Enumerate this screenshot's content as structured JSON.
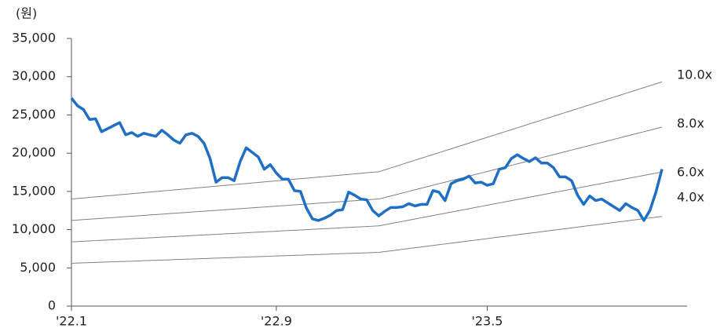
{
  "chart_data": {
    "type": "line",
    "y_label": "(원)",
    "ylim": [
      0,
      35000
    ],
    "yticks": [
      0,
      {
        "value": 5000,
        "label": "5,000"
      },
      {
        "value": 10000,
        "label": "10,000"
      },
      {
        "value": 15000,
        "label": "15,000"
      },
      {
        "value": 20000,
        "label": "20,000"
      },
      {
        "value": 25000,
        "label": "25,000"
      },
      {
        "value": 30000,
        "label": "30,000"
      },
      {
        "value": 35000,
        "label": "35,000"
      }
    ],
    "categories": [
      "'22.1",
      null,
      null,
      null,
      null,
      null,
      null,
      null,
      null,
      null,
      null,
      null,
      null,
      null,
      null,
      null,
      null,
      null,
      null,
      null,
      null,
      null,
      null,
      null,
      null,
      null,
      null,
      null,
      null,
      null,
      null,
      null,
      null,
      null,
      "'22.9",
      null,
      null,
      null,
      null,
      null,
      null,
      null,
      null,
      null,
      null,
      null,
      null,
      null,
      null,
      null,
      null,
      null,
      null,
      null,
      null,
      null,
      null,
      null,
      null,
      null,
      null,
      null,
      null,
      null,
      null,
      null,
      null,
      null,
      null,
      "'23.5",
      null,
      null,
      null,
      null,
      null,
      null,
      null,
      null,
      null,
      null,
      null,
      null,
      null,
      null,
      null,
      null,
      null,
      null,
      null,
      null,
      null,
      null,
      null,
      null,
      null,
      null,
      null,
      null,
      null
    ],
    "series": [
      {
        "color": "#1f6fc5",
        "values": [
          27200,
          26200,
          25700,
          24400,
          24500,
          22800,
          23200,
          23600,
          24000,
          22400,
          22700,
          22200,
          22600,
          22400,
          22200,
          23000,
          22400,
          21700,
          21300,
          22400,
          22600,
          22200,
          21300,
          19300,
          16200,
          16800,
          16800,
          16400,
          18900,
          20700,
          20100,
          19500,
          17900,
          18500,
          17400,
          16600,
          16600,
          15100,
          15000,
          12800,
          11400,
          11200,
          11500,
          11900,
          12500,
          12600,
          14900,
          14500,
          14000,
          13900,
          12500,
          11800,
          12400,
          12900,
          12900,
          13000,
          13400,
          13100,
          13300,
          13300,
          15100,
          14900,
          13800,
          16000,
          16400,
          16600,
          17000,
          16100,
          16200,
          15800,
          16000,
          17900,
          18100,
          19300,
          19800,
          19300,
          18900,
          19400,
          18700,
          18700,
          18100,
          16900,
          16900,
          16400,
          14500,
          13300,
          14400,
          13800,
          14000,
          13500,
          13000,
          12500,
          13400,
          12900,
          12500,
          11200,
          12500,
          14900,
          17900
        ]
      },
      {
        "name": "10.0x",
        "color": "#808080",
        "values": [
          14000,
          14070,
          14140,
          14210,
          14280,
          14350,
          14420,
          14490,
          14560,
          14630,
          14700,
          14770,
          14840,
          14910,
          14980,
          15050,
          15120,
          15190,
          15260,
          15330,
          15400,
          15470,
          15540,
          15610,
          15680,
          15750,
          15820,
          15890,
          15960,
          16030,
          16100,
          16170,
          16240,
          16310,
          16380,
          16450,
          16520,
          16590,
          16660,
          16730,
          16800,
          16870,
          16940,
          17010,
          17080,
          17150,
          17220,
          17290,
          17360,
          17430,
          17500,
          17570,
          17820,
          18070,
          18320,
          18570,
          18820,
          19070,
          19320,
          19570,
          19820,
          20070,
          20320,
          20570,
          20820,
          21070,
          21320,
          21570,
          21820,
          22070,
          22320,
          22570,
          22820,
          23070,
          23320,
          23570,
          23820,
          24070,
          24320,
          24570,
          24820,
          25070,
          25320,
          25570,
          25820,
          26070,
          26320,
          26570,
          26820,
          27070,
          27320,
          27570,
          27820,
          28070,
          28320,
          28570,
          28820,
          29070,
          29320
        ]
      },
      {
        "name": "8.0x",
        "color": "#808080",
        "values": [
          11200,
          11255,
          11310,
          11365,
          11420,
          11475,
          11530,
          11585,
          11640,
          11695,
          11750,
          11805,
          11860,
          11915,
          11970,
          12025,
          12080,
          12135,
          12190,
          12245,
          12300,
          12355,
          12410,
          12465,
          12520,
          12575,
          12630,
          12685,
          12740,
          12795,
          12850,
          12905,
          12960,
          13015,
          13070,
          13125,
          13180,
          13235,
          13290,
          13345,
          13400,
          13455,
          13510,
          13565,
          13620,
          13675,
          13730,
          13785,
          13840,
          13895,
          13950,
          14005,
          14205,
          14405,
          14605,
          14805,
          15005,
          15205,
          15405,
          15605,
          15805,
          16005,
          16205,
          16405,
          16605,
          16805,
          17005,
          17205,
          17405,
          17605,
          17805,
          18005,
          18205,
          18405,
          18605,
          18805,
          19005,
          19205,
          19405,
          19605,
          19805,
          20005,
          20205,
          20405,
          20605,
          20805,
          21005,
          21205,
          21405,
          21605,
          21805,
          22005,
          22205,
          22405,
          22605,
          22805,
          23005,
          23205,
          23405
        ]
      },
      {
        "name": "6.0x",
        "color": "#808080",
        "values": [
          8400,
          8441,
          8482,
          8523,
          8564,
          8605,
          8646,
          8687,
          8728,
          8769,
          8810,
          8851,
          8892,
          8933,
          8974,
          9015,
          9056,
          9097,
          9138,
          9179,
          9220,
          9261,
          9302,
          9343,
          9384,
          9425,
          9466,
          9507,
          9548,
          9589,
          9630,
          9671,
          9712,
          9753,
          9794,
          9835,
          9876,
          9917,
          9958,
          9999,
          10040,
          10081,
          10122,
          10163,
          10204,
          10245,
          10286,
          10327,
          10368,
          10409,
          10450,
          10491,
          10641,
          10791,
          10941,
          11091,
          11241,
          11391,
          11541,
          11691,
          11841,
          11991,
          12141,
          12291,
          12441,
          12591,
          12741,
          12891,
          13041,
          13191,
          13341,
          13491,
          13641,
          13791,
          13941,
          14091,
          14241,
          14391,
          14541,
          14691,
          14841,
          14991,
          15141,
          15291,
          15441,
          15591,
          15741,
          15891,
          16041,
          16191,
          16341,
          16491,
          16641,
          16791,
          16941,
          17091,
          17241,
          17391,
          17541
        ]
      },
      {
        "name": "4.0x",
        "color": "#808080",
        "values": [
          5600,
          5628,
          5656,
          5684,
          5712,
          5740,
          5768,
          5796,
          5824,
          5852,
          5880,
          5908,
          5936,
          5964,
          5992,
          6020,
          6048,
          6076,
          6104,
          6132,
          6160,
          6188,
          6216,
          6244,
          6272,
          6300,
          6328,
          6356,
          6384,
          6412,
          6440,
          6468,
          6496,
          6524,
          6552,
          6580,
          6608,
          6636,
          6664,
          6692,
          6720,
          6748,
          6776,
          6804,
          6832,
          6860,
          6888,
          6916,
          6944,
          6972,
          7000,
          7028,
          7128,
          7228,
          7328,
          7428,
          7528,
          7628,
          7728,
          7828,
          7928,
          8028,
          8128,
          8228,
          8328,
          8428,
          8528,
          8628,
          8728,
          8828,
          8928,
          9028,
          9128,
          9228,
          9328,
          9428,
          9528,
          9628,
          9728,
          9828,
          9928,
          10028,
          10128,
          10228,
          10328,
          10428,
          10528,
          10628,
          10728,
          10828,
          10928,
          11028,
          11128,
          11228,
          11328,
          11428,
          11528,
          11628,
          11728
        ]
      }
    ]
  }
}
